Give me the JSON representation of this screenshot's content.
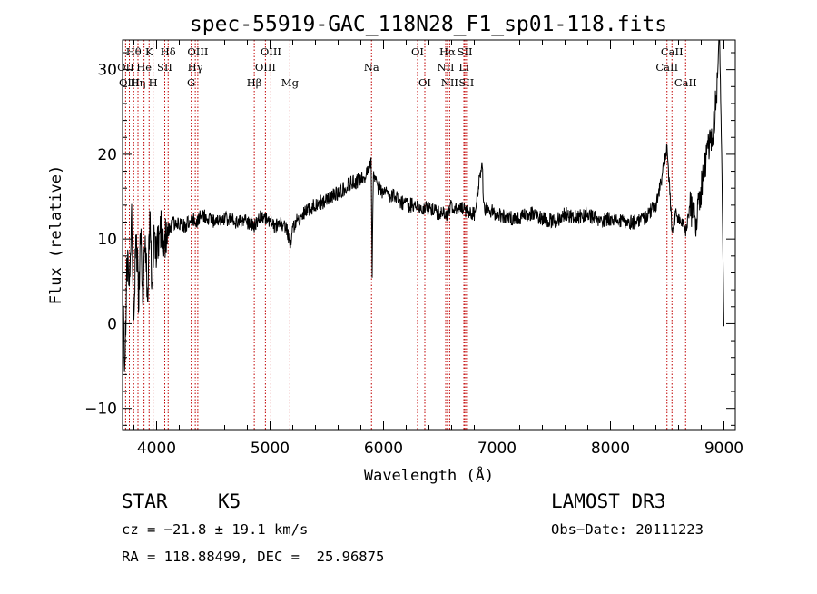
{
  "chart_data": {
    "type": "line",
    "title": "spec-55919-GAC_118N28_F1_sp01-118.fits",
    "xlabel": "Wavelength (Å)",
    "ylabel": "Flux (relative)",
    "xlim": [
      3700,
      9100
    ],
    "ylim": [
      -12.5,
      33.5
    ],
    "x_ticks": [
      4000,
      5000,
      6000,
      7000,
      8000,
      9000
    ],
    "y_ticks": [
      -10,
      0,
      10,
      20,
      30
    ],
    "grid": false,
    "series": [
      {
        "name": "flux",
        "x": [
          3700,
          3720,
          3740,
          3760,
          3780,
          3800,
          3820,
          3840,
          3860,
          3880,
          3900,
          3920,
          3940,
          3960,
          3980,
          4000,
          4030,
          4060,
          4100,
          4150,
          4200,
          4250,
          4300,
          4350,
          4400,
          4450,
          4500,
          4600,
          4700,
          4800,
          4860,
          4900,
          4950,
          5000,
          5050,
          5100,
          5150,
          5180,
          5200,
          5300,
          5400,
          5500,
          5600,
          5700,
          5800,
          5850,
          5890,
          5900,
          5910,
          5950,
          6000,
          6100,
          6200,
          6300,
          6400,
          6500,
          6563,
          6600,
          6700,
          6800,
          6870,
          6880,
          6900,
          7000,
          7100,
          7200,
          7300,
          7400,
          7500,
          7600,
          7700,
          7800,
          7900,
          8000,
          8100,
          8200,
          8300,
          8400,
          8450,
          8498,
          8520,
          8542,
          8580,
          8620,
          8662,
          8700,
          8750,
          8800,
          8850,
          8900,
          8940,
          8960,
          8980,
          9000
        ],
        "values": [
          5,
          -5,
          8,
          4,
          14,
          0,
          11,
          3,
          10,
          4,
          11,
          2,
          12,
          5,
          11,
          8,
          12,
          9,
          11,
          12,
          12,
          11.5,
          12.5,
          12,
          13,
          12.5,
          12,
          12.5,
          12,
          12,
          11.5,
          12.5,
          12.5,
          12,
          11.5,
          12,
          11,
          9.5,
          11.5,
          13,
          14,
          14.5,
          15.5,
          16.5,
          17,
          17.5,
          19,
          6,
          17.5,
          16,
          15.5,
          15,
          14,
          14,
          13.5,
          13,
          13,
          14,
          13.5,
          13,
          19,
          14,
          13.5,
          13,
          12.5,
          12.5,
          13,
          12.5,
          12,
          13,
          12.5,
          13,
          12,
          12.5,
          12,
          12,
          12.5,
          14,
          17,
          21,
          16,
          11,
          13,
          12,
          11,
          14,
          12,
          16,
          20,
          22,
          28,
          35,
          20,
          -0.3
        ]
      }
    ],
    "lines": [
      {
        "label": "Hθ",
        "x": 3798,
        "row": 0
      },
      {
        "label": "OII",
        "x": 3727,
        "row": 1
      },
      {
        "label": "OIII",
        "x": 3760,
        "row": 2
      },
      {
        "label": "Hη",
        "x": 3836,
        "row": 2
      },
      {
        "label": "He",
        "x": 3889,
        "row": 1
      },
      {
        "label": "K",
        "x": 3934,
        "row": 0
      },
      {
        "label": "H",
        "x": 3969,
        "row": 2
      },
      {
        "label": "SII",
        "x": 4072,
        "row": 1
      },
      {
        "label": "Hδ",
        "x": 4102,
        "row": 0
      },
      {
        "label": "OIII",
        "x": 4363,
        "row": 0
      },
      {
        "label": "Hγ",
        "x": 4341,
        "row": 1
      },
      {
        "label": "G",
        "x": 4305,
        "row": 2
      },
      {
        "label": "OIII",
        "x": 5007,
        "row": 0
      },
      {
        "label": "OIII",
        "x": 4959,
        "row": 1
      },
      {
        "label": "Hβ",
        "x": 4861,
        "row": 2
      },
      {
        "label": "Mg",
        "x": 5175,
        "row": 2
      },
      {
        "label": "Na",
        "x": 5894,
        "row": 1
      },
      {
        "label": "OI",
        "x": 6300,
        "row": 0
      },
      {
        "label": "OI",
        "x": 6364,
        "row": 2
      },
      {
        "label": "Hα",
        "x": 6563,
        "row": 0
      },
      {
        "label": "NII",
        "x": 6548,
        "row": 1
      },
      {
        "label": "NII",
        "x": 6583,
        "row": 2
      },
      {
        "label": "SII",
        "x": 6717,
        "row": 0
      },
      {
        "label": "Li",
        "x": 6708,
        "row": 1
      },
      {
        "label": "SII",
        "x": 6731,
        "row": 2
      },
      {
        "label": "CaII",
        "x": 8542,
        "row": 0
      },
      {
        "label": "CaII",
        "x": 8498,
        "row": 1
      },
      {
        "label": "CaII",
        "x": 8662,
        "row": 2
      }
    ]
  },
  "info": {
    "class": "STAR",
    "subclass": "K5",
    "survey": "LAMOST DR3",
    "cz": "cz = −21.8 ± 19.1 km/s",
    "obs_date": "Obs−Date: 20111223",
    "coords": "RA = 118.88499, DEC =  25.96875"
  }
}
